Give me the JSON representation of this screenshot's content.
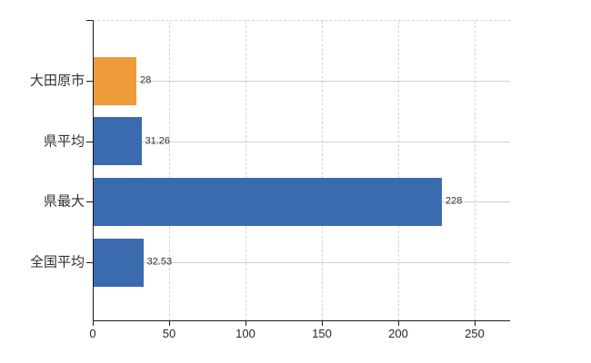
{
  "chart_data": {
    "type": "bar",
    "orientation": "horizontal",
    "title": "",
    "xlabel": "",
    "ylabel": "",
    "categories": [
      "大田原市",
      "県平均",
      "県最大",
      "全国平均"
    ],
    "values": [
      28,
      31.26,
      228,
      32.53
    ],
    "value_labels": [
      "28",
      "31.26",
      "228",
      "32.53"
    ],
    "bar_colors": [
      "#ee9b3c",
      "#3a6bae",
      "#3a6bae",
      "#3a6bae"
    ],
    "x_ticks": [
      0,
      50,
      100,
      150,
      200,
      250
    ],
    "xlim": [
      0,
      272
    ],
    "grid": "on",
    "legend": "none",
    "axis_color": "#1a1a1a",
    "horizontal_gridline_color": "#ccd3cc",
    "vertical_gridline_color": "#d7d0d7",
    "text_color": "#303030",
    "background_color": "#ffffff"
  }
}
